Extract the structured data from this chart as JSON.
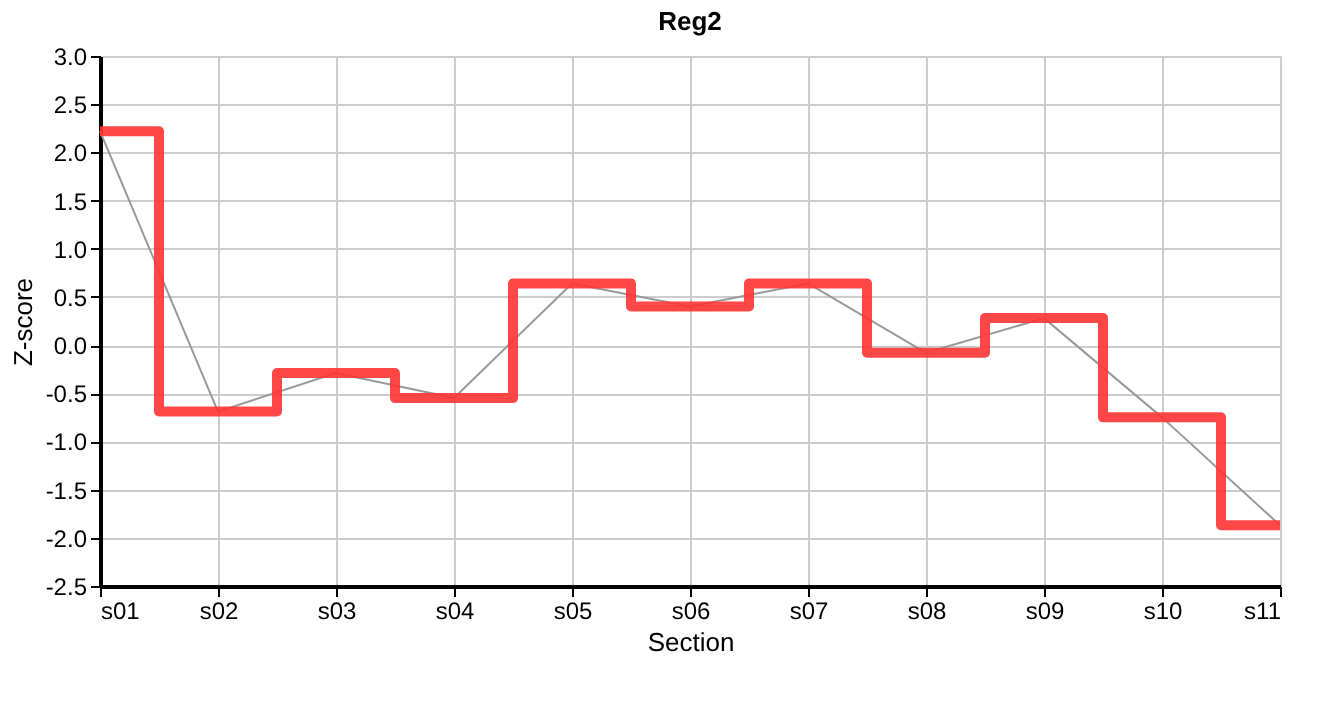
{
  "chart_data": {
    "type": "line",
    "title": "Reg2",
    "xlabel": "Section",
    "ylabel": "Z-score",
    "categories": [
      "s01",
      "s02",
      "s03",
      "s04",
      "s05",
      "s06",
      "s07",
      "s08",
      "s09",
      "s10",
      "s11"
    ],
    "series": [
      {
        "type": "step",
        "color": "#ff3333",
        "values": [
          2.22,
          -0.69,
          -0.29,
          -0.55,
          0.64,
          0.4,
          0.64,
          -0.08,
          0.28,
          -0.75,
          -1.87
        ]
      },
      {
        "color": "#999999",
        "values": [
          2.22,
          -0.69,
          -0.29,
          -0.55,
          0.64,
          0.4,
          0.64,
          -0.08,
          0.28,
          -0.75,
          -1.87
        ]
      }
    ],
    "ylim": [
      -2.5,
      3.0
    ],
    "yticks": [
      {
        "value": -2.5,
        "label": "-2.5"
      },
      {
        "value": -2.0,
        "label": "-2.0"
      },
      {
        "value": -1.5,
        "label": "-1.5"
      },
      {
        "value": -1.0,
        "label": "-1.0"
      },
      {
        "value": -0.5,
        "label": "-0.5"
      },
      {
        "value": 0.0,
        "label": "0.0"
      },
      {
        "value": 0.5,
        "label": "0.5"
      },
      {
        "value": 1.0,
        "label": "1.0"
      },
      {
        "value": 1.5,
        "label": "1.5"
      },
      {
        "value": 2.0,
        "label": "2.0"
      },
      {
        "value": 2.5,
        "label": "2.5"
      },
      {
        "value": 3.0,
        "label": "3.0"
      }
    ],
    "grid": true,
    "marker": "none",
    "line_style": "solid"
  }
}
